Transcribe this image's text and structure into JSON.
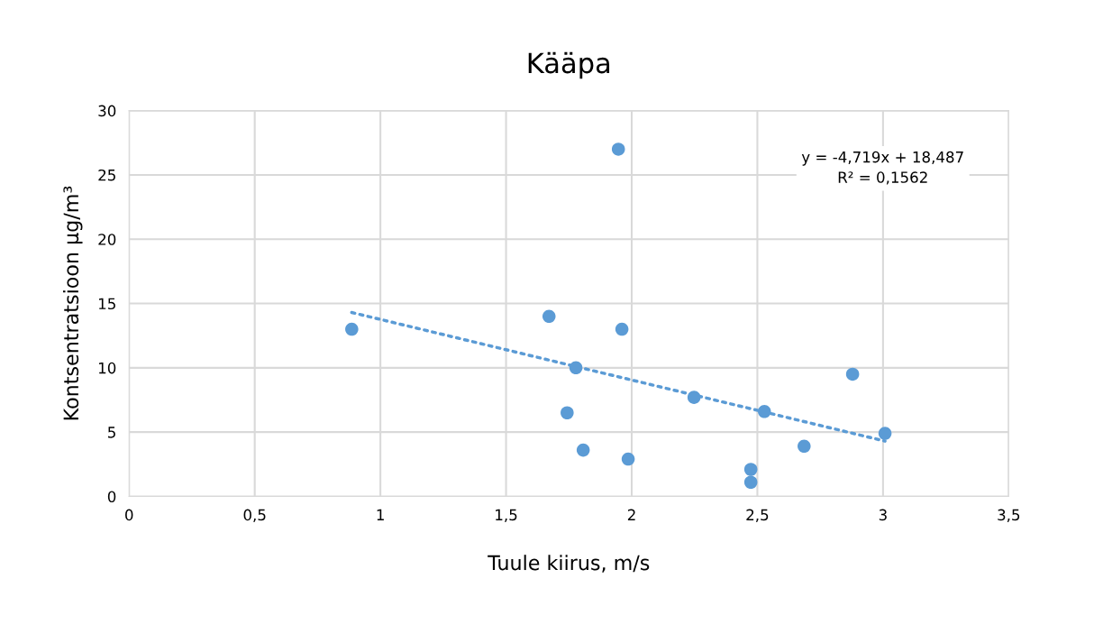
{
  "chart_data": {
    "type": "scatter",
    "title": "Kääpa",
    "xlabel": "Tuule kiirus, m/s",
    "ylabel": "Kontsentratsioon µg/m³",
    "xlim": [
      0,
      3.5
    ],
    "xticks": [
      0,
      {
        "value": 0.5,
        "label": "0,5"
      },
      1,
      {
        "value": 1.5,
        "label": "1,5"
      },
      2,
      {
        "value": 2.5,
        "label": "2,5"
      },
      3,
      {
        "value": 3.5,
        "label": "3,5"
      }
    ],
    "ylim": [
      0,
      30
    ],
    "yticks": [
      0,
      5,
      10,
      15,
      20,
      25,
      30
    ],
    "grid": true,
    "legend": false,
    "series": [
      {
        "color": "#5b9bd5",
        "marker": "circle",
        "x": [
          0.886,
          1.671,
          1.961,
          1.947,
          1.778,
          1.743,
          1.807,
          1.986,
          2.248,
          2.528,
          2.474,
          2.474,
          2.686,
          2.879,
          3.008
        ],
        "values": [
          13,
          14,
          13,
          27,
          10,
          6.5,
          3.6,
          2.9,
          7.7,
          6.6,
          2.1,
          1.1,
          3.9,
          9.5,
          4.9
        ]
      },
      {
        "type": "line",
        "color": "#5b9bd5",
        "marker": "none",
        "line_style": "dotted",
        "x": [
          0.886,
          3.008
        ],
        "values": [
          14.3,
          4.3
        ]
      }
    ],
    "annotations": [
      "y = -4,719x + 18,487\nR² = 0,1562"
    ]
  }
}
